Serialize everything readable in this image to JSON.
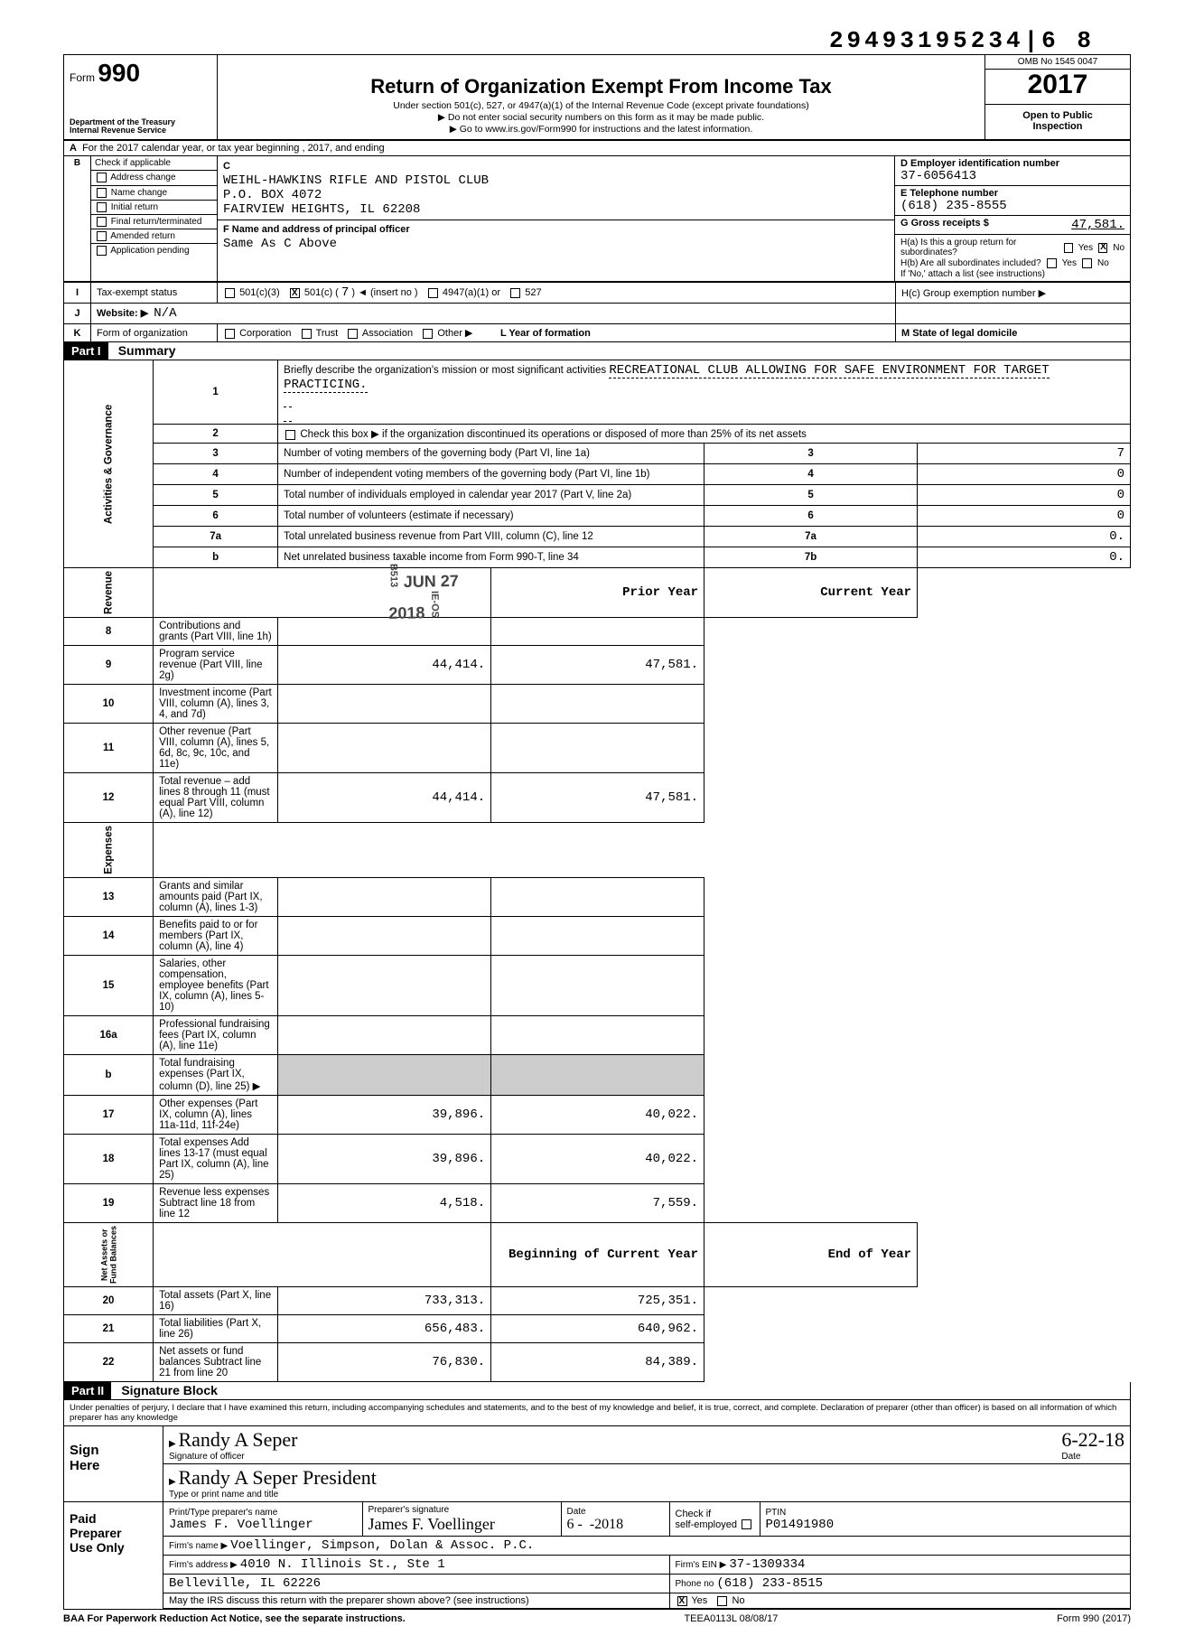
{
  "colors": {
    "text": "#000000",
    "bg": "#ffffff",
    "stamp": "#444444"
  },
  "fonts": {
    "mono": "Courier New",
    "base": "Arial",
    "script": "Brush Script MT"
  },
  "dln": "29493195234|6 8",
  "form": {
    "form_label": "Form",
    "form_number": "990",
    "dept": "Department of the Treasury\nInternal Revenue Service",
    "title": "Return of Organization Exempt From Income Tax",
    "subtitle": "Under section 501(c), 527, or 4947(a)(1) of the Internal Revenue Code (except private foundations)\n▶ Do not enter social security numbers on this form as it may be made public.\n▶ Go to www.irs.gov/Form990 for instructions and the latest information.",
    "omb": "OMB No  1545 0047",
    "year": "2017",
    "open": "Open to Public\nInspection"
  },
  "rowA": "For the 2017 calendar year, or tax year beginning                                         , 2017, and ending",
  "B": {
    "label": "B",
    "header": "Check if applicable",
    "items": [
      "Address change",
      "Name change",
      "Initial return",
      "Final return/terminated",
      "Amended return",
      "Application pending"
    ]
  },
  "C": {
    "label": "C",
    "name": "WEIHL-HAWKINS RIFLE AND PISTOL CLUB",
    "addr1": "P.O. BOX 4072",
    "addr2": "FAIRVIEW HEIGHTS, IL 62208",
    "F_label": "F  Name and address of principal officer",
    "F_value": "Same As C Above"
  },
  "D": {
    "ein_label": "D  Employer identification number",
    "ein": "37-6056413",
    "tel_label": "E  Telephone number",
    "tel": "(618) 235-8555",
    "gross_label": "G  Gross receipts $",
    "gross": "47,581."
  },
  "H": {
    "a": "H(a) Is this a group return for subordinates?",
    "a_yes": "Yes",
    "a_no": "No",
    "a_checked": "no",
    "b": "H(b) Are all subordinates included?",
    "b_note": "If 'No,' attach a list (see instructions)",
    "c": "H(c) Group exemption number ▶"
  },
  "I": {
    "label": "I",
    "title": "Tax-exempt status",
    "opts": [
      "501(c)(3)",
      "501(c) (",
      "7",
      ") ◄   (insert no )",
      "4947(a)(1) or",
      "527"
    ],
    "checked_index": 1
  },
  "J": {
    "label": "J",
    "title": "Website: ▶",
    "value": "N/A"
  },
  "K": {
    "label": "K",
    "title": "Form of organization",
    "opts": [
      "Corporation",
      "Trust",
      "Association",
      "Other ▶"
    ],
    "L": "L  Year of formation",
    "M": "M  State of legal domicile"
  },
  "part1": {
    "header": "Part I",
    "title": "Summary"
  },
  "gov": {
    "side": "Activities & Governance",
    "l1_label": "Briefly describe the organization's mission or most significant activities",
    "l1_value": "RECREATIONAL CLUB ALLOWING FOR SAFE ENVIRONMENT FOR TARGET PRACTICING.",
    "l2": "Check this box ▶      if the organization discontinued its operations or disposed of more than 25% of its net assets",
    "rows": [
      {
        "n": "3",
        "t": "Number of voting members of the governing body (Part VI, line 1a)",
        "c": "3",
        "v": "7"
      },
      {
        "n": "4",
        "t": "Number of independent voting members of the governing body (Part VI, line 1b)",
        "c": "4",
        "v": "0"
      },
      {
        "n": "5",
        "t": "Total number of individuals employed in calendar year 2017 (Part V, line 2a)",
        "c": "5",
        "v": "0"
      },
      {
        "n": "6",
        "t": "Total number of volunteers (estimate if necessary)",
        "c": "6",
        "v": "0"
      },
      {
        "n": "7a",
        "t": "Total unrelated business revenue from Part VIII, column (C), line 12",
        "c": "7a",
        "v": "0."
      },
      {
        "n": "b",
        "t": "Net unrelated business taxable income from Form 990-T, line 34",
        "c": "7b",
        "v": "0."
      }
    ]
  },
  "stamp": {
    "text": "JUN 27 2018",
    "sub": "B513",
    "side": "IE-OS"
  },
  "rev": {
    "side": "Revenue",
    "hdr_prior": "Prior Year",
    "hdr_curr": "Current Year",
    "rows": [
      {
        "n": "8",
        "t": "Contributions and grants (Part VIII, line 1h)",
        "p": "",
        "c": ""
      },
      {
        "n": "9",
        "t": "Program service revenue (Part VIII, line 2g)",
        "p": "44,414.",
        "c": "47,581."
      },
      {
        "n": "10",
        "t": "Investment income (Part VIII, column (A), lines 3, 4, and 7d)",
        "p": "",
        "c": ""
      },
      {
        "n": "11",
        "t": "Other revenue (Part VIII, column (A), lines 5, 6d, 8c, 9c, 10c, and 11e)",
        "p": "",
        "c": ""
      },
      {
        "n": "12",
        "t": "Total revenue – add lines 8 through 11 (must equal Part VIII, column (A), line 12)",
        "p": "44,414.",
        "c": "47,581."
      }
    ]
  },
  "exp": {
    "side": "Expenses",
    "rows": [
      {
        "n": "13",
        "t": "Grants and similar amounts paid (Part IX, column (A), lines 1-3)",
        "p": "",
        "c": ""
      },
      {
        "n": "14",
        "t": "Benefits paid to or for members (Part IX, column (A), line 4)",
        "p": "",
        "c": ""
      },
      {
        "n": "15",
        "t": "Salaries, other compensation, employee benefits (Part IX, column (A), lines 5-10)",
        "p": "",
        "c": ""
      },
      {
        "n": "16a",
        "t": "Professional fundraising fees (Part IX, column (A), line 11e)",
        "p": "",
        "c": ""
      },
      {
        "n": "b",
        "t": "Total fundraising expenses (Part IX, column (D), line 25) ▶",
        "p": "—",
        "c": "—"
      },
      {
        "n": "17",
        "t": "Other expenses (Part IX, column (A), lines 11a-11d, 11f-24e)",
        "p": "39,896.",
        "c": "40,022."
      },
      {
        "n": "18",
        "t": "Total expenses  Add lines 13-17 (must equal Part IX, column (A), line 25)",
        "p": "39,896.",
        "c": "40,022."
      },
      {
        "n": "19",
        "t": "Revenue less expenses  Subtract line 18 from line 12",
        "p": "4,518.",
        "c": "7,559."
      }
    ]
  },
  "net": {
    "side": "Net Assets or\nFund Balances",
    "hdr_beg": "Beginning of Current Year",
    "hdr_end": "End of Year",
    "rows": [
      {
        "n": "20",
        "t": "Total assets (Part X, line 16)",
        "p": "733,313.",
        "c": "725,351."
      },
      {
        "n": "21",
        "t": "Total liabilities (Part X, line 26)",
        "p": "656,483.",
        "c": "640,962."
      },
      {
        "n": "22",
        "t": "Net assets or fund balances  Subtract line 21 from line 20",
        "p": "76,830.",
        "c": "84,389."
      }
    ]
  },
  "part2": {
    "header": "Part II",
    "title": "Signature Block"
  },
  "penalties": "Under penalties of perjury, I declare that I have examined this return, including accompanying schedules and statements, and to the best of my knowledge and belief, it is true, correct, and complete. Declaration of preparer (other than officer) is based on all information of which preparer has any knowledge",
  "sign": {
    "label": "Sign\nHere",
    "sig_cursive": "Randy A Seper",
    "sig_caption": "Signature of officer",
    "date": "6-22-18",
    "date_caption": "Date",
    "name_cursive": "Randy A Seper   President",
    "name_caption": "Type or print name and title"
  },
  "prep": {
    "label": "Paid\nPreparer\nUse Only",
    "row1": {
      "c1_lbl": "Print/Type preparer's name",
      "c1": "James F. Voellinger",
      "c2_lbl": "Preparer's signature",
      "c2": "James F. Voellinger",
      "c3_lbl": "Date",
      "c3": "6 - ⁠  -2018",
      "c4_lbl": "Check        if\nself-employed",
      "c5_lbl": "PTIN",
      "c5": "P01491980"
    },
    "row2": {
      "lbl": "Firm's name    ▶",
      "val": "Voellinger, Simpson, Dolan & Assoc. P.C."
    },
    "row3": {
      "lbl": "Firm's address ▶",
      "val": "4010 N. Illinois St., Ste 1",
      "ein_lbl": "Firm's EIN ▶",
      "ein": "37-1309334"
    },
    "row4": {
      "val": "Belleville, IL 62226",
      "ph_lbl": "Phone no",
      "ph": "(618) 233-8515"
    },
    "row5": {
      "q": "May the IRS discuss this return with the preparer shown above? (see instructions)",
      "yes": "Yes",
      "no": "No",
      "checked": "yes"
    }
  },
  "footer": {
    "left": "BAA  For Paperwork Reduction Act Notice, see the separate instructions.",
    "mid": "TEEA0113L  08/08/17",
    "right": "Form 990 (2017)"
  },
  "pagecorner": "17"
}
